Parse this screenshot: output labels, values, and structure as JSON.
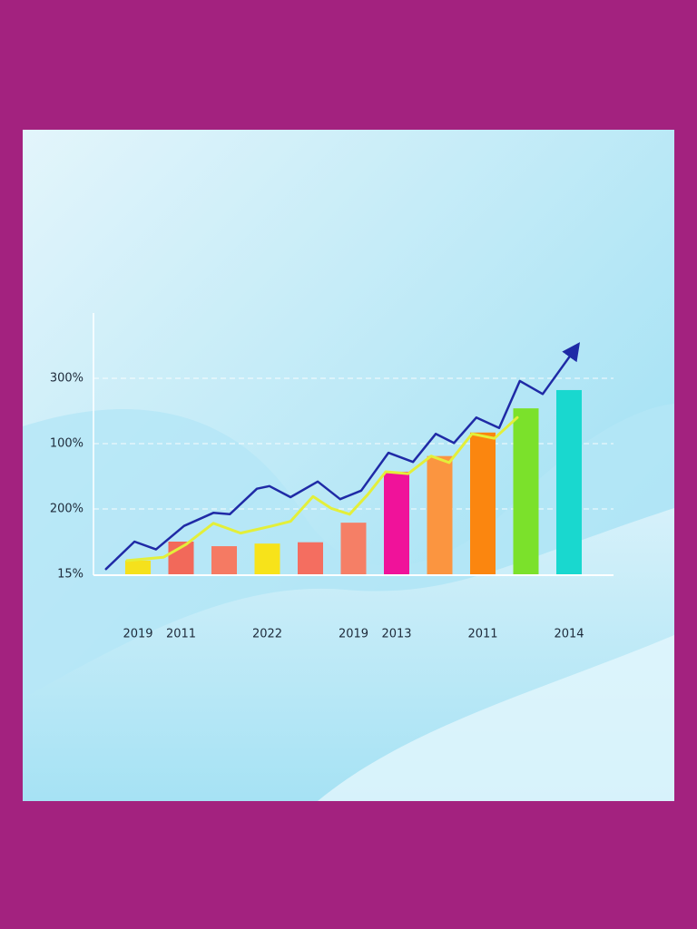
{
  "chart_data": {
    "type": "bar",
    "categories": [
      "2019",
      "2011",
      null,
      "2022",
      null,
      "2019",
      "2013",
      null,
      "2011",
      null,
      "2014"
    ],
    "values": [
      0.21,
      0.5,
      0.43,
      0.47,
      0.49,
      0.79,
      1.57,
      1.81,
      2.17,
      2.54,
      2.82
    ],
    "colors": [
      "#f5e11c",
      "#f2695a",
      "#f57a63",
      "#f7e31a",
      "#f46e60",
      "#f57f66",
      "#f0129a",
      "#fb9540",
      "#fb860f",
      "#7be12b",
      "#19d8cf"
    ],
    "y_axis_labels": [
      "15%",
      "200%",
      "100%",
      "300%"
    ],
    "ylim": [
      0,
      4
    ],
    "lines": [
      {
        "color": "#1f2aa6",
        "x": [
          -0.74,
          -0.08,
          0.42,
          1.07,
          1.75,
          2.13,
          2.76,
          3.05,
          3.54,
          4.17,
          4.69,
          5.18,
          5.81,
          6.38,
          6.91,
          7.33,
          7.85,
          8.38,
          8.86,
          9.39,
          10.13
        ],
        "values": [
          0.08,
          0.5,
          0.38,
          0.74,
          0.94,
          0.92,
          1.31,
          1.35,
          1.18,
          1.42,
          1.15,
          1.28,
          1.86,
          1.72,
          2.15,
          2.01,
          2.4,
          2.24,
          2.96,
          2.76,
          3.44
        ]
      },
      {
        "color": "#e3ef3a",
        "x": [
          -0.25,
          0.59,
          1.12,
          1.75,
          2.38,
          3.12,
          3.54,
          4.06,
          4.48,
          4.91,
          5.33,
          5.75,
          6.27,
          6.8,
          7.22,
          7.75,
          8.27,
          8.8
        ],
        "values": [
          0.21,
          0.26,
          0.46,
          0.78,
          0.63,
          0.74,
          0.81,
          1.19,
          1.01,
          0.92,
          1.22,
          1.57,
          1.54,
          1.81,
          1.71,
          2.15,
          2.08,
          2.4
        ]
      }
    ]
  }
}
